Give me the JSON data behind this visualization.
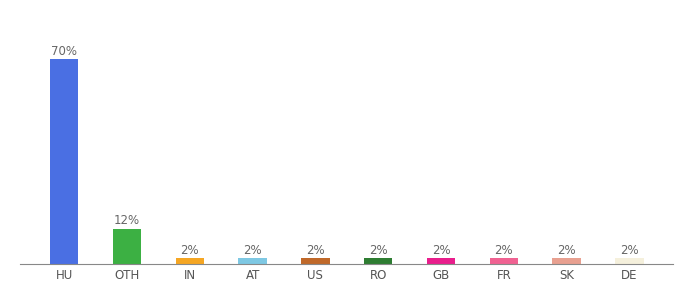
{
  "categories": [
    "HU",
    "OTH",
    "IN",
    "AT",
    "US",
    "RO",
    "GB",
    "FR",
    "SK",
    "DE"
  ],
  "values": [
    70,
    12,
    2,
    2,
    2,
    2,
    2,
    2,
    2,
    2
  ],
  "bar_colors": [
    "#4A6FE3",
    "#3CB043",
    "#F5A623",
    "#7EC8E3",
    "#C0692A",
    "#2E7D32",
    "#E91E8C",
    "#F06292",
    "#E8A090",
    "#F5F0DC"
  ],
  "ylim": [
    0,
    78
  ],
  "bar_width": 0.45,
  "bar_label_fontsize": 8.5,
  "xlabel_fontsize": 8.5,
  "background_color": "#ffffff"
}
